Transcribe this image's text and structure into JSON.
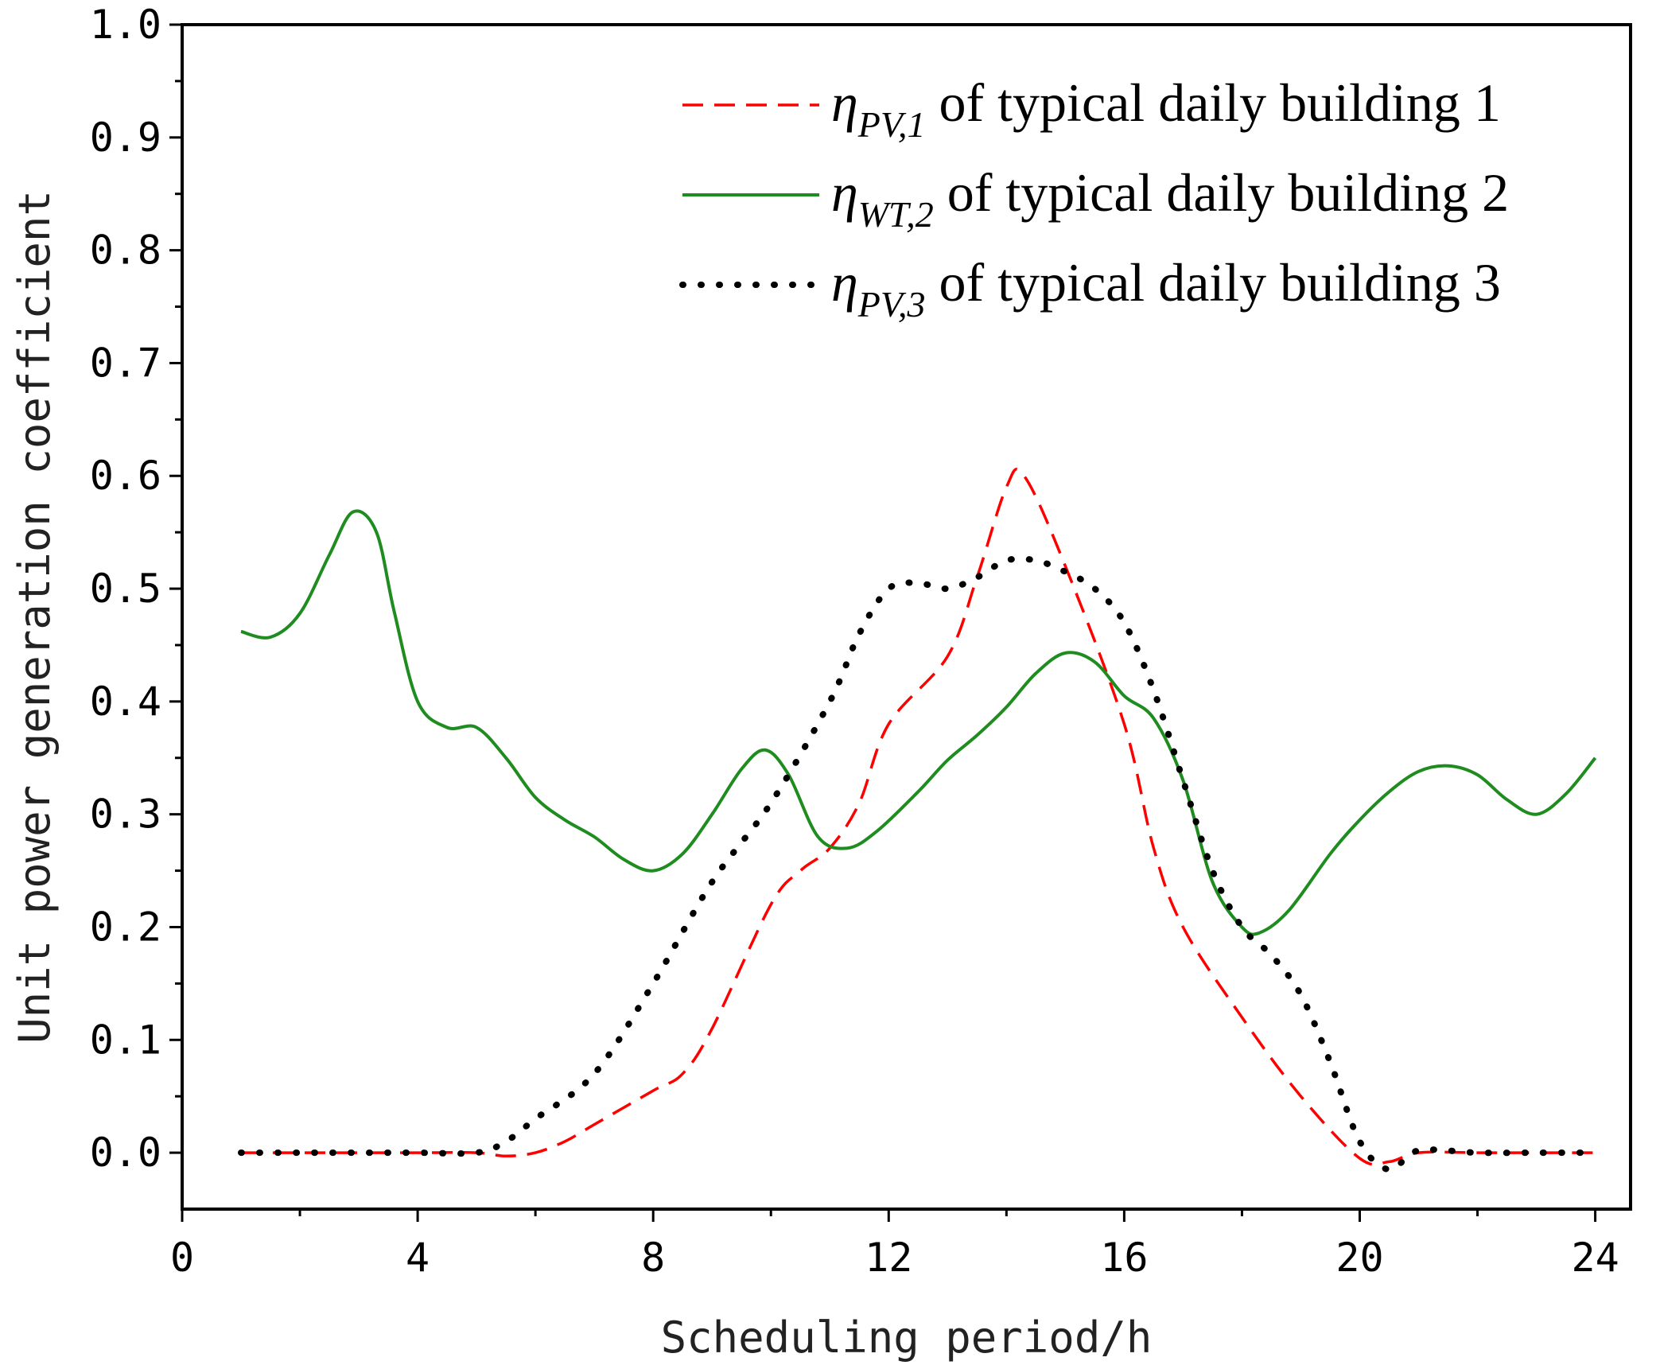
{
  "chart_data": {
    "type": "line",
    "title": "",
    "xlabel": "Scheduling period/h",
    "ylabel": "Unit power generation coefficient",
    "xlim": [
      0,
      24.6
    ],
    "ylim": [
      -0.05,
      1.0
    ],
    "xticks": [
      0,
      4,
      8,
      12,
      16,
      20,
      24
    ],
    "xtick_labels": [
      "0",
      "4",
      "8",
      "12",
      "16",
      "20",
      "24"
    ],
    "yticks": [
      0.0,
      0.1,
      0.2,
      0.3,
      0.4,
      0.5,
      0.6,
      0.7,
      0.8,
      0.9,
      1.0
    ],
    "ytick_labels": [
      "0.0",
      "0.1",
      "0.2",
      "0.3",
      "0.4",
      "0.5",
      "0.6",
      "0.7",
      "0.8",
      "0.9",
      "1.0"
    ],
    "grid": false,
    "legend_position": "top-right",
    "series": [
      {
        "name": "η_PV,1 of typical daily building 1",
        "symbol": "η",
        "subscript": "PV,1",
        "suffix": " of  typical daily building 1",
        "color": "#ff0000",
        "style": "dashed",
        "x": [
          1,
          2,
          3,
          4,
          5,
          5.5,
          6,
          6.5,
          7,
          8,
          8.5,
          9,
          10,
          10.5,
          11,
          11.5,
          12,
          13,
          13.5,
          14,
          14.3,
          15,
          16,
          16.5,
          17,
          18,
          19,
          20,
          20.5,
          21,
          22,
          23,
          24
        ],
        "y": [
          0,
          0,
          0,
          0,
          0,
          -0.003,
          0,
          0.01,
          0.025,
          0.055,
          0.07,
          0.11,
          0.22,
          0.25,
          0.27,
          0.31,
          0.38,
          0.44,
          0.51,
          0.59,
          0.6,
          0.52,
          0.38,
          0.27,
          0.2,
          0.12,
          0.05,
          -0.005,
          -0.008,
          0,
          0,
          0,
          0
        ]
      },
      {
        "name": "η_WT,2 of typical daily building 2",
        "symbol": "η",
        "subscript": "WT,2",
        "suffix": " of  typical daily building 2",
        "color": "#1f8c1f",
        "style": "solid",
        "x": [
          1,
          1.5,
          2,
          2.5,
          2.9,
          3.3,
          3.6,
          4,
          4.5,
          5,
          5.5,
          6,
          6.5,
          7,
          7.5,
          8,
          8.5,
          9,
          9.5,
          9.9,
          10.3,
          10.8,
          11.3,
          11.8,
          12.5,
          13,
          13.5,
          14,
          14.5,
          15,
          15.5,
          16,
          16.5,
          17,
          17.5,
          18,
          18.3,
          18.8,
          19.5,
          20,
          20.5,
          21,
          21.5,
          22,
          22.5,
          23,
          23.5,
          24
        ],
        "y": [
          0.462,
          0.457,
          0.478,
          0.53,
          0.568,
          0.55,
          0.48,
          0.4,
          0.377,
          0.377,
          0.35,
          0.315,
          0.295,
          0.28,
          0.26,
          0.25,
          0.265,
          0.3,
          0.34,
          0.357,
          0.335,
          0.28,
          0.27,
          0.285,
          0.32,
          0.348,
          0.37,
          0.395,
          0.425,
          0.443,
          0.435,
          0.405,
          0.385,
          0.33,
          0.24,
          0.2,
          0.195,
          0.215,
          0.265,
          0.295,
          0.32,
          0.338,
          0.343,
          0.335,
          0.313,
          0.3,
          0.318,
          0.35
        ]
      },
      {
        "name": "η_PV,3 of typical daily building 3",
        "symbol": "η",
        "subscript": "PV,3",
        "suffix": " of  typical daily building 3",
        "color": "#000000",
        "style": "dotted",
        "x": [
          1,
          2,
          3,
          4,
          5,
          5.5,
          6,
          7,
          8,
          9,
          10,
          11,
          11.5,
          12,
          12.5,
          13,
          13.5,
          14,
          14.5,
          15,
          15.5,
          16,
          16.5,
          17,
          17.5,
          18,
          18.5,
          19,
          19.5,
          20,
          20.5,
          21,
          22,
          23,
          24
        ],
        "y": [
          0,
          0,
          0,
          0,
          0,
          0.01,
          0.03,
          0.07,
          0.15,
          0.24,
          0.31,
          0.4,
          0.46,
          0.5,
          0.505,
          0.5,
          0.51,
          0.525,
          0.525,
          0.515,
          0.5,
          0.47,
          0.41,
          0.33,
          0.25,
          0.2,
          0.175,
          0.14,
          0.08,
          0.01,
          -0.015,
          0.002,
          0,
          0,
          0
        ]
      }
    ]
  }
}
